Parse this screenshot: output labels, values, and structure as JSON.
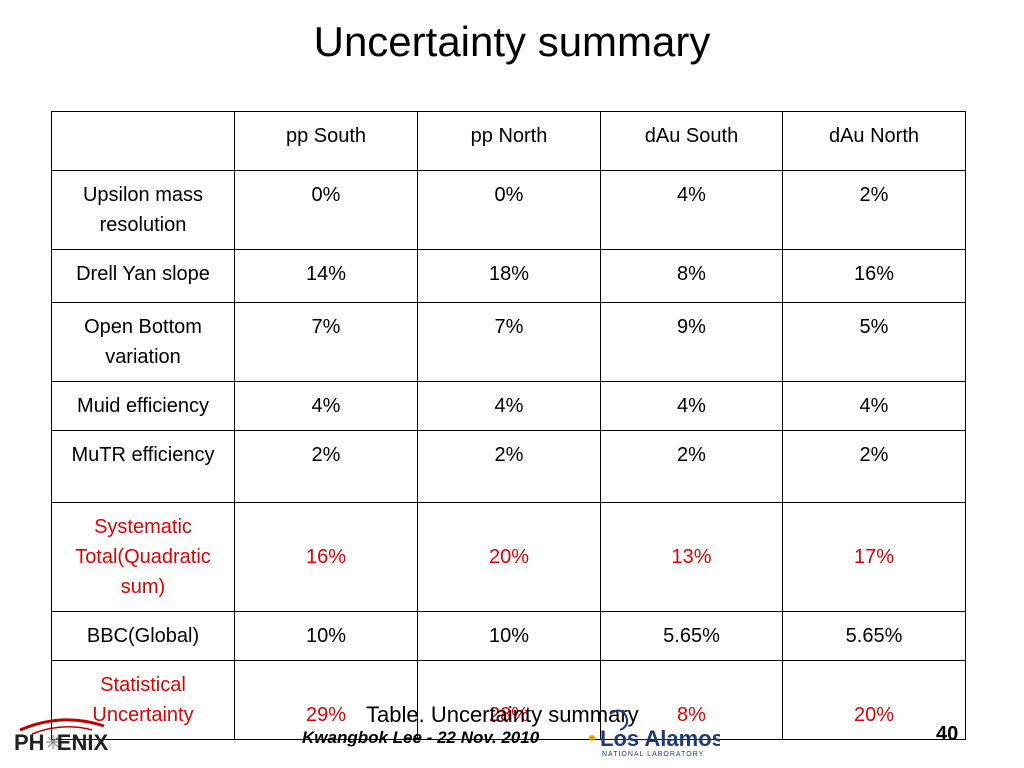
{
  "title": "Uncertainty summary",
  "table": {
    "headers": [
      "",
      "pp South",
      "pp North",
      "dAu South",
      "dAu North"
    ],
    "rows": [
      {
        "label": "Upsilon mass resolution",
        "values": [
          "0%",
          "0%",
          "4%",
          "2%"
        ]
      },
      {
        "label": "Drell Yan slope",
        "values": [
          "14%",
          "18%",
          "8%",
          "16%"
        ]
      },
      {
        "label": "Open Bottom variation",
        "values": [
          "7%",
          "7%",
          "9%",
          "5%"
        ]
      },
      {
        "label": "Muid efficiency",
        "values": [
          "4%",
          "4%",
          "4%",
          "4%"
        ]
      },
      {
        "label": "MuTR efficiency",
        "values": [
          "2%",
          "2%",
          "2%",
          "2%"
        ]
      },
      {
        "label": "Systematic Total(Quadratic sum)",
        "values": [
          "16%",
          "20%",
          "13%",
          "17%"
        ]
      },
      {
        "label": "BBC(Global)",
        "values": [
          "10%",
          "10%",
          "5.65%",
          "5.65%"
        ]
      },
      {
        "label": "Statistical Uncertainty",
        "values": [
          "29%",
          "28%",
          "8%",
          "20%"
        ]
      }
    ]
  },
  "caption": "Table. Uncertainty summary",
  "author": "Kwangbok Lee - 22 Nov. 2010",
  "page_number": "40",
  "logos": {
    "phenix": "PH  ENIX",
    "lanl_name": "Los Alamos",
    "lanl_sub": "NATIONAL LABORATORY"
  },
  "colors": {
    "highlight": "#e00000",
    "phenix_arc": "#c00000",
    "lanl_blue": "#1f3a7a"
  }
}
